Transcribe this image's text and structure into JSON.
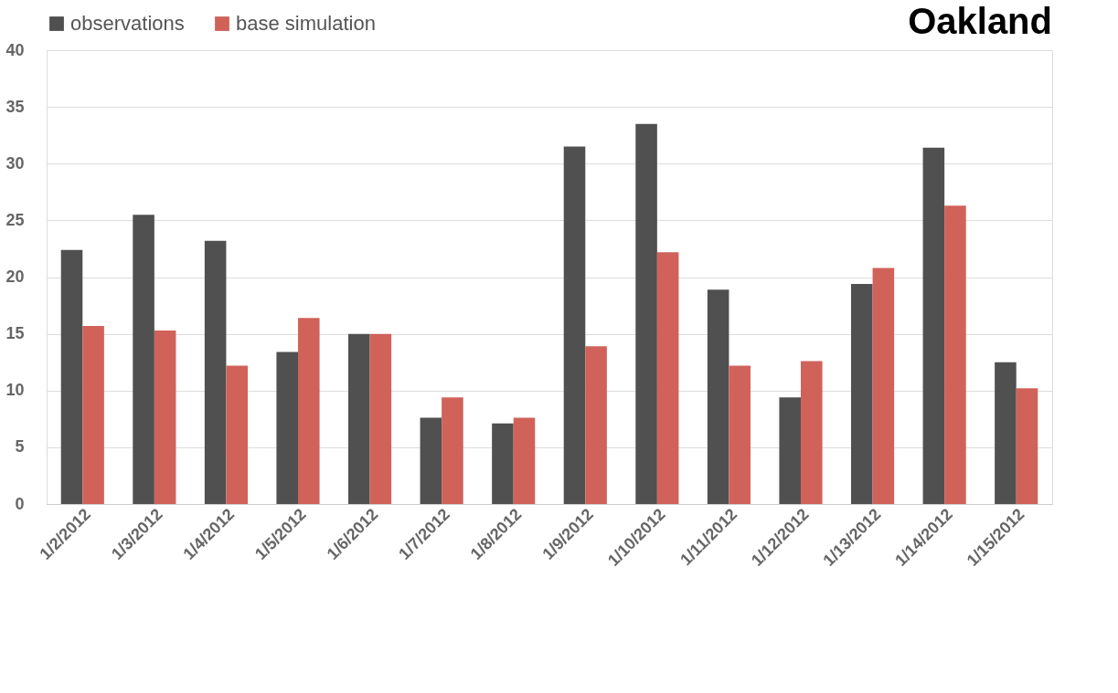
{
  "chart_data": {
    "type": "bar",
    "title": "Oakland",
    "categories": [
      "1/2/2012",
      "1/3/2012",
      "1/4/2012",
      "1/5/2012",
      "1/6/2012",
      "1/7/2012",
      "1/8/2012",
      "1/9/2012",
      "1/10/2012",
      "1/11/2012",
      "1/12/2012",
      "1/13/2012",
      "1/14/2012",
      "1/15/2012"
    ],
    "series": [
      {
        "name": "observations",
        "color": "#505050",
        "values": [
          22.4,
          25.5,
          23.2,
          13.4,
          15.0,
          7.6,
          7.1,
          31.5,
          33.5,
          18.9,
          9.4,
          19.4,
          31.4,
          12.5
        ]
      },
      {
        "name": "base simulation",
        "color": "#d0625a",
        "values": [
          15.7,
          15.3,
          12.2,
          16.4,
          15.0,
          9.4,
          7.6,
          13.9,
          22.2,
          12.2,
          12.6,
          20.8,
          26.3,
          10.2
        ]
      }
    ],
    "ylim": [
      0,
      40
    ],
    "yticks": [
      0,
      5,
      10,
      15,
      20,
      25,
      30,
      35,
      40
    ],
    "grid": "y",
    "legend": "top"
  }
}
